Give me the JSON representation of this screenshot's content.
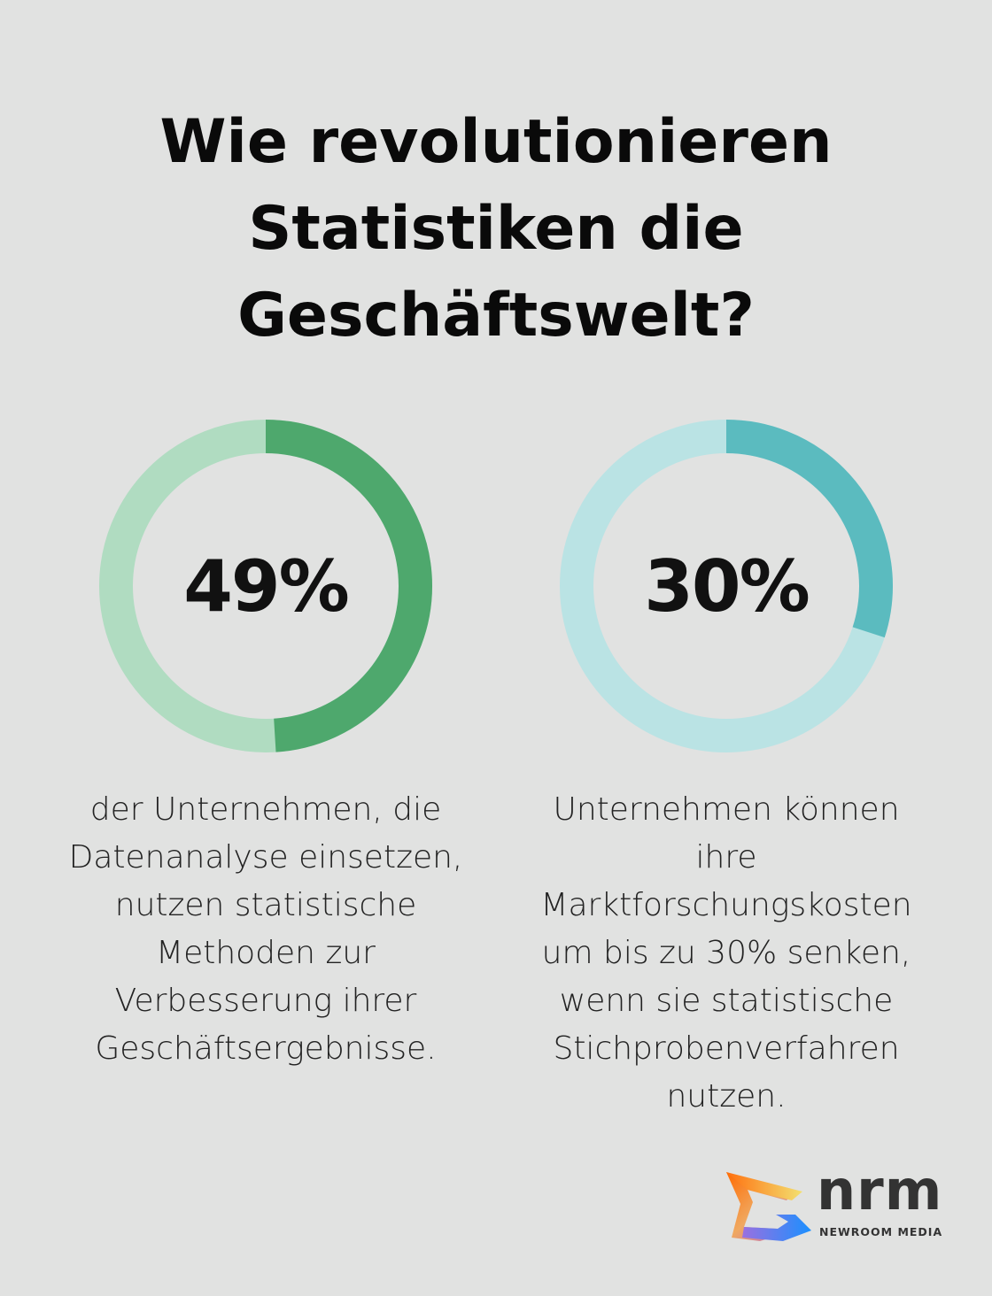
{
  "title": "Wie revolutionieren Statistiken die Geschäftswelt?",
  "chart_data": [
    {
      "type": "pie",
      "variant": "donut",
      "values": [
        49,
        51
      ],
      "label": "49%",
      "description": "der Unternehmen, die Datenanalyse einsetzen, nutzen statistische Methoden zur Verbesserung ihrer Geschäftsergebnisse.",
      "colors": {
        "fill": "#4ea86d",
        "track": "#b0dcc1"
      }
    },
    {
      "type": "pie",
      "variant": "donut",
      "values": [
        30,
        70
      ],
      "label": "30%",
      "description": "Unternehmen können ihre Marktforschungskosten um bis zu 30% senken, wenn sie statistische Stichprobenverfahren nutzen.",
      "colors": {
        "fill": "#5bbbbf",
        "track": "#bae3e4"
      }
    }
  ],
  "logo": {
    "wordmark": "nrm",
    "subtitle": "NEWROOM MEDIA"
  }
}
